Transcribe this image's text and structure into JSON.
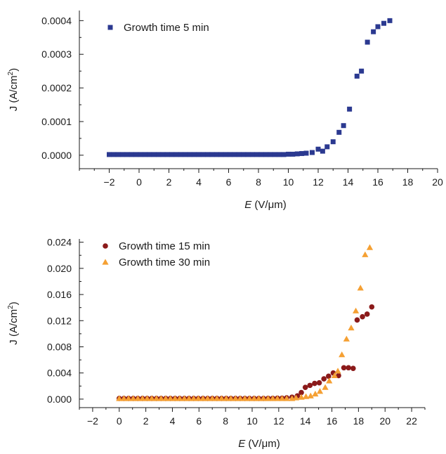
{
  "chart_data": [
    {
      "type": "scatter",
      "title": "",
      "xlabel": {
        "italic": "E",
        "rest": " (V/μm)"
      },
      "ylabel": {
        "base": "J (A/cm",
        "sup": "2",
        "close": ")"
      },
      "xlim": [
        -4,
        20
      ],
      "ylim": [
        -4e-05,
        0.00043
      ],
      "xticks": [
        "−2",
        "0",
        "2",
        "4",
        "6",
        "8",
        "10",
        "12",
        "14",
        "16",
        "18",
        "20"
      ],
      "xtick_values": [
        -2,
        0,
        2,
        4,
        6,
        8,
        10,
        12,
        14,
        16,
        18,
        20
      ],
      "yticks": [
        "0.0000",
        "0.0001",
        "0.0002",
        "0.0003",
        "0.0004"
      ],
      "ytick_values": [
        0,
        0.0001,
        0.0002,
        0.0003,
        0.0004
      ],
      "grid": false,
      "legend_position": "top-left",
      "series": [
        {
          "name": "Growth time 5 min",
          "marker": "square",
          "color": "#2b3990",
          "points": [
            [
              -2.0,
              2e-06
            ],
            [
              -1.7,
              2e-06
            ],
            [
              -1.4,
              2e-06
            ],
            [
              -1.1,
              2e-06
            ],
            [
              -0.8,
              2e-06
            ],
            [
              -0.5,
              2e-06
            ],
            [
              -0.2,
              2e-06
            ],
            [
              0.1,
              2e-06
            ],
            [
              0.4,
              2e-06
            ],
            [
              0.7,
              2e-06
            ],
            [
              1.0,
              2e-06
            ],
            [
              1.3,
              2e-06
            ],
            [
              1.6,
              2e-06
            ],
            [
              1.9,
              2e-06
            ],
            [
              2.2,
              2e-06
            ],
            [
              2.5,
              2e-06
            ],
            [
              2.8,
              2e-06
            ],
            [
              3.1,
              2e-06
            ],
            [
              3.4,
              2e-06
            ],
            [
              3.7,
              2e-06
            ],
            [
              4.0,
              2e-06
            ],
            [
              4.3,
              2e-06
            ],
            [
              4.6,
              2e-06
            ],
            [
              4.9,
              2e-06
            ],
            [
              5.2,
              2e-06
            ],
            [
              5.5,
              2e-06
            ],
            [
              5.8,
              2e-06
            ],
            [
              6.1,
              2e-06
            ],
            [
              6.4,
              2e-06
            ],
            [
              6.7,
              2e-06
            ],
            [
              7.0,
              2e-06
            ],
            [
              7.3,
              2e-06
            ],
            [
              7.6,
              2e-06
            ],
            [
              7.9,
              2e-06
            ],
            [
              8.2,
              2e-06
            ],
            [
              8.5,
              2e-06
            ],
            [
              8.8,
              2e-06
            ],
            [
              9.1,
              2e-06
            ],
            [
              9.4,
              2e-06
            ],
            [
              9.7,
              2e-06
            ],
            [
              10.0,
              3e-06
            ],
            [
              10.3,
              3e-06
            ],
            [
              10.6,
              4e-06
            ],
            [
              10.9,
              5e-06
            ],
            [
              11.2,
              6e-06
            ],
            [
              11.6,
              8e-06
            ],
            [
              12.0,
              1.8e-05
            ],
            [
              12.3,
              1.2e-05
            ],
            [
              12.6,
              2.5e-05
            ],
            [
              13.0,
              4e-05
            ],
            [
              13.4,
              6.8e-05
            ],
            [
              13.7,
              8.8e-05
            ],
            [
              14.1,
              0.000137
            ],
            [
              14.6,
              0.000235
            ],
            [
              14.9,
              0.00025
            ],
            [
              15.3,
              0.000336
            ],
            [
              15.7,
              0.000367
            ],
            [
              16.0,
              0.000382
            ],
            [
              16.4,
              0.000392
            ],
            [
              16.8,
              0.0004
            ]
          ]
        }
      ]
    },
    {
      "type": "scatter",
      "title": "",
      "xlabel": {
        "italic": "E",
        "rest": " (V/μm)"
      },
      "ylabel": {
        "base": "J (A/cm",
        "sup": "2",
        "close": ")"
      },
      "xlim": [
        -3,
        23
      ],
      "ylim": [
        -0.0013,
        0.0245
      ],
      "xticks": [
        "−2",
        "0",
        "2",
        "4",
        "6",
        "8",
        "10",
        "12",
        "14",
        "16",
        "18",
        "20",
        "22"
      ],
      "xtick_values": [
        -2,
        0,
        2,
        4,
        6,
        8,
        10,
        12,
        14,
        16,
        18,
        20,
        22
      ],
      "yticks": [
        "0.000",
        "0.004",
        "0.008",
        "0.012",
        "0.016",
        "0.020",
        "0.024"
      ],
      "ytick_values": [
        0,
        0.004,
        0.008,
        0.012,
        0.016,
        0.02,
        0.024
      ],
      "grid": false,
      "legend_position": "top-left",
      "series": [
        {
          "name": "Growth time 15 min",
          "marker": "circle",
          "color": "#8b1a1a",
          "points": [
            [
              0.0,
              0.0001
            ],
            [
              0.35,
              0.0001
            ],
            [
              0.7,
              0.0001
            ],
            [
              1.05,
              0.0001
            ],
            [
              1.4,
              0.0001
            ],
            [
              1.75,
              0.0001
            ],
            [
              2.1,
              0.0001
            ],
            [
              2.45,
              0.0001
            ],
            [
              2.8,
              0.0001
            ],
            [
              3.15,
              0.0001
            ],
            [
              3.5,
              0.0001
            ],
            [
              3.85,
              0.0001
            ],
            [
              4.2,
              0.0001
            ],
            [
              4.55,
              0.0001
            ],
            [
              4.9,
              0.0001
            ],
            [
              5.25,
              0.0001
            ],
            [
              5.6,
              0.0001
            ],
            [
              5.95,
              0.0001
            ],
            [
              6.3,
              0.0001
            ],
            [
              6.65,
              0.0001
            ],
            [
              7.0,
              0.0001
            ],
            [
              7.35,
              0.0001
            ],
            [
              7.7,
              0.0001
            ],
            [
              8.05,
              0.0001
            ],
            [
              8.4,
              0.0001
            ],
            [
              8.75,
              0.0001
            ],
            [
              9.1,
              0.0001
            ],
            [
              9.45,
              0.0001
            ],
            [
              9.8,
              0.0001
            ],
            [
              10.15,
              0.0001
            ],
            [
              10.5,
              0.0001
            ],
            [
              10.85,
              0.0001
            ],
            [
              11.2,
              0.00012
            ],
            [
              11.55,
              0.00012
            ],
            [
              11.9,
              0.00015
            ],
            [
              12.25,
              0.00015
            ],
            [
              12.6,
              0.0002
            ],
            [
              13.0,
              0.0003
            ],
            [
              13.4,
              0.0005
            ],
            [
              13.7,
              0.001
            ],
            [
              14.0,
              0.0018
            ],
            [
              14.35,
              0.0021
            ],
            [
              14.7,
              0.0024
            ],
            [
              15.05,
              0.0025
            ],
            [
              15.4,
              0.0031
            ],
            [
              15.75,
              0.0035
            ],
            [
              16.1,
              0.004
            ],
            [
              16.5,
              0.0036
            ],
            [
              16.9,
              0.0048
            ],
            [
              17.25,
              0.0048
            ],
            [
              17.6,
              0.0047
            ],
            [
              17.9,
              0.0121
            ],
            [
              18.3,
              0.0126
            ],
            [
              18.65,
              0.013
            ],
            [
              19.0,
              0.0141
            ]
          ]
        },
        {
          "name": "Growth time 30 min",
          "marker": "triangle",
          "color": "#f5a033",
          "points": [
            [
              0.0,
              0.0001
            ],
            [
              0.35,
              0.0001
            ],
            [
              0.7,
              0.0001
            ],
            [
              1.05,
              0.0001
            ],
            [
              1.4,
              0.0001
            ],
            [
              1.75,
              0.0001
            ],
            [
              2.1,
              0.0001
            ],
            [
              2.45,
              0.0001
            ],
            [
              2.8,
              0.0001
            ],
            [
              3.15,
              0.0001
            ],
            [
              3.5,
              0.0001
            ],
            [
              3.85,
              0.0001
            ],
            [
              4.2,
              0.0001
            ],
            [
              4.55,
              0.0001
            ],
            [
              4.9,
              0.0001
            ],
            [
              5.25,
              0.0001
            ],
            [
              5.6,
              0.0001
            ],
            [
              5.95,
              0.0001
            ],
            [
              6.3,
              0.0001
            ],
            [
              6.65,
              0.0001
            ],
            [
              7.0,
              0.0001
            ],
            [
              7.35,
              0.0001
            ],
            [
              7.7,
              0.0001
            ],
            [
              8.05,
              0.0001
            ],
            [
              8.4,
              0.0001
            ],
            [
              8.75,
              0.0001
            ],
            [
              9.1,
              0.0001
            ],
            [
              9.45,
              0.0001
            ],
            [
              9.8,
              0.0001
            ],
            [
              10.15,
              0.0001
            ],
            [
              10.5,
              0.0001
            ],
            [
              10.85,
              0.0001
            ],
            [
              11.2,
              0.0001
            ],
            [
              11.55,
              0.0001
            ],
            [
              11.9,
              0.0001
            ],
            [
              12.25,
              0.0001
            ],
            [
              12.6,
              0.0001
            ],
            [
              13.0,
              0.0001
            ],
            [
              13.3,
              0.0002
            ],
            [
              13.7,
              0.0003
            ],
            [
              14.05,
              0.0004
            ],
            [
              14.4,
              0.0005
            ],
            [
              14.75,
              0.0008
            ],
            [
              15.1,
              0.0012
            ],
            [
              15.5,
              0.0018
            ],
            [
              15.8,
              0.0028
            ],
            [
              16.2,
              0.0036
            ],
            [
              16.45,
              0.0043
            ],
            [
              16.75,
              0.0068
            ],
            [
              17.1,
              0.0092
            ],
            [
              17.45,
              0.0109
            ],
            [
              17.8,
              0.0135
            ],
            [
              18.15,
              0.017
            ],
            [
              18.5,
              0.0221
            ],
            [
              18.85,
              0.0232
            ]
          ]
        }
      ]
    }
  ]
}
